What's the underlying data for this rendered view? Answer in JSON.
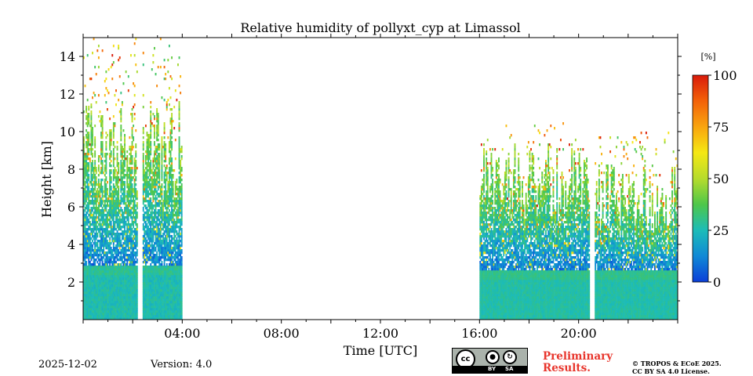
{
  "chart_data": {
    "type": "heatmap",
    "title": "Relative humidity of pollyxt_cyp at Limassol",
    "xlabel": "Time [UTC]",
    "ylabel": "Height [km]",
    "xlim_hours": [
      0,
      24
    ],
    "ylim_km": [
      0,
      15
    ],
    "x_ticks": [
      {
        "hour": 4,
        "label": "04:00"
      },
      {
        "hour": 8,
        "label": "08:00"
      },
      {
        "hour": 12,
        "label": "12:00"
      },
      {
        "hour": 16,
        "label": "16:00"
      },
      {
        "hour": 20,
        "label": "20:00"
      }
    ],
    "y_ticks": [
      {
        "km": 2,
        "label": "2"
      },
      {
        "km": 4,
        "label": "4"
      },
      {
        "km": 6,
        "label": "6"
      },
      {
        "km": 8,
        "label": "8"
      },
      {
        "km": 10,
        "label": "10"
      },
      {
        "km": 12,
        "label": "12"
      },
      {
        "km": 14,
        "label": "14"
      }
    ],
    "colorbar": {
      "unit": "[%]",
      "range": [
        0,
        100
      ],
      "ticks": [
        {
          "value": 0,
          "label": "0"
        },
        {
          "value": 25,
          "label": "25"
        },
        {
          "value": 50,
          "label": "50"
        },
        {
          "value": 75,
          "label": "75"
        },
        {
          "value": 100,
          "label": "100"
        }
      ],
      "colors": [
        "#0b3ed8",
        "#1089d6",
        "#1cbcb8",
        "#4ec74a",
        "#b6dc2c",
        "#f5e814",
        "#f9a50e",
        "#f36209",
        "#d91a0a"
      ]
    },
    "segments": [
      {
        "start_h": 0.0,
        "end_h": 4.0,
        "boundary_layer_top_km": 2.8,
        "low_rh": 22,
        "high_rh": 30,
        "free_trop_top_km": 10.5,
        "sparse_top_km": 15.0,
        "gaps_h": [
          [
            2.2,
            2.4
          ]
        ]
      },
      {
        "start_h": 16.0,
        "end_h": 20.45,
        "boundary_layer_top_km": 2.6,
        "low_rh": 24,
        "high_rh": 30,
        "free_trop_top_km": 8.5,
        "sparse_top_km": 10.5,
        "gaps_h": []
      },
      {
        "start_h": 20.65,
        "end_h": 24.0,
        "boundary_layer_top_km": 2.6,
        "low_rh": 24,
        "high_rh": 30,
        "free_trop_top_km": 7.5,
        "sparse_top_km": 10.0,
        "gaps_h": []
      }
    ],
    "data_gap_hours": [
      [
        4.0,
        16.0
      ],
      [
        20.45,
        20.65
      ]
    ]
  },
  "footer": {
    "date": "2025-12-02",
    "version": "Version: 4.0",
    "license_badge": {
      "cc": "cc",
      "by": "BY",
      "sa": "SA"
    },
    "preliminary_line1": "Preliminary",
    "preliminary_line2": "Results.",
    "copyright_line1": "© TROPOS & ECoE 2025.",
    "copyright_line2": "CC BY SA 4.0 License."
  }
}
